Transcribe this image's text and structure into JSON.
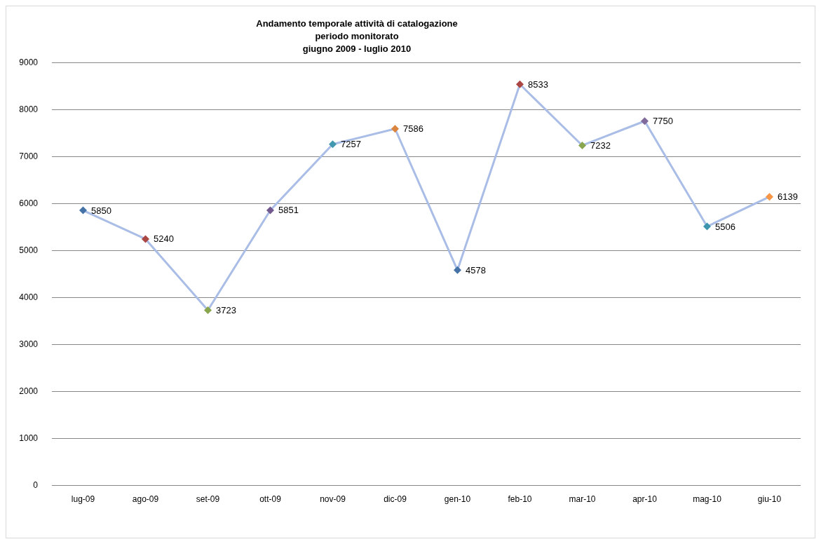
{
  "chart_data": {
    "type": "line",
    "title": "Andamento temporale attività di catalogazione\nperiodo monitorato\ngiugno 2009 - luglio 2010",
    "categories": [
      "lug-09",
      "ago-09",
      "set-09",
      "ott-09",
      "nov-09",
      "dic-09",
      "gen-10",
      "feb-10",
      "mar-10",
      "apr-10",
      "mag-10",
      "giu-10"
    ],
    "series": [
      {
        "color": "#a9bde6",
        "values": [
          5850,
          5240,
          3723,
          5851,
          7257,
          7586,
          4578,
          8533,
          7232,
          7750,
          5506,
          6139
        ],
        "colors": [
          "#4572a7",
          "#aa4643",
          "#89a54e",
          "#71588f",
          "#4198af",
          "#db843d",
          "#4572a7",
          "#aa4643",
          "#89a54e",
          "#80699b",
          "#3d96ae",
          "#f79646"
        ]
      }
    ],
    "ylim": [
      0,
      9000
    ],
    "yticks": [
      0,
      1000,
      2000,
      3000,
      4000,
      5000,
      6000,
      7000,
      8000,
      9000
    ],
    "grid": "y",
    "data_labels": true,
    "marker": "diamond"
  }
}
